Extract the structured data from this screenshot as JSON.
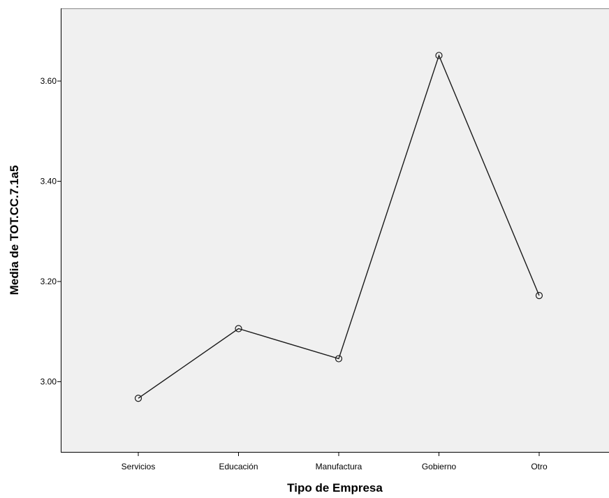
{
  "chart_data": {
    "type": "line",
    "title": "",
    "xlabel": "Tipo de Empresa",
    "ylabel": "Media de TOT.CC.7.1a5",
    "categories": [
      "Servicios",
      "Educación",
      "Manufactura",
      "Gobierno",
      "Otro"
    ],
    "series": [
      {
        "values": [
          2.967,
          3.106,
          3.046,
          3.651,
          3.172
        ]
      }
    ],
    "yticks": [
      "3.00",
      "3.20",
      "3.40",
      "3.60"
    ],
    "ytick_values": [
      3.0,
      3.2,
      3.4,
      3.6
    ],
    "ylim": [
      2.86,
      3.745
    ],
    "grid": false,
    "legend": "none",
    "marker": "open-circle",
    "colors": {
      "plot_background": "#f0f0f0",
      "line": "#1a1a1a",
      "frame": "#000000"
    }
  }
}
